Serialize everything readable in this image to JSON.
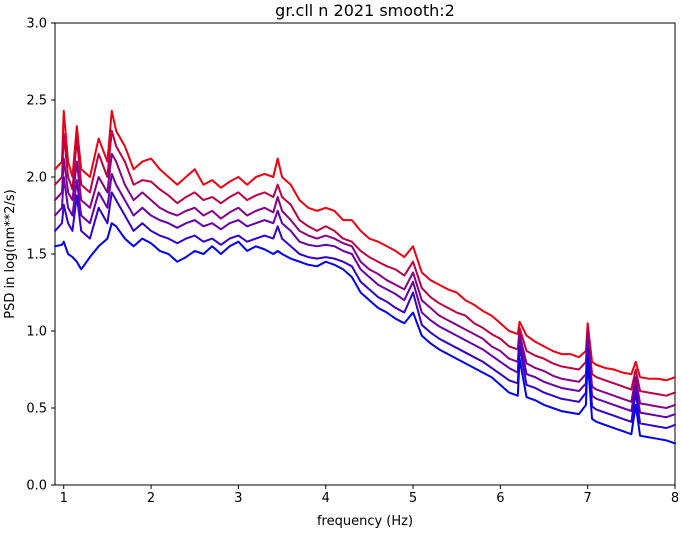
{
  "chart_data": {
    "type": "line",
    "title": "gr.cll n 2021 smooth:2",
    "xlabel": "frequency (Hz)",
    "ylabel": "PSD in log(nm**2/s)",
    "xlim": [
      0.9,
      8.0
    ],
    "ylim": [
      0.0,
      3.0
    ],
    "xticks": [
      1,
      2,
      3,
      4,
      5,
      6,
      7,
      8
    ],
    "yticks": [
      0.0,
      0.5,
      1.0,
      1.5,
      2.0,
      2.5,
      3.0
    ],
    "xtick_labels": [
      "1",
      "2",
      "3",
      "4",
      "5",
      "6",
      "7",
      "8"
    ],
    "ytick_labels": [
      "0.0",
      "0.5",
      "1.0",
      "1.5",
      "2.0",
      "2.5",
      "3.0"
    ],
    "grid": false,
    "legend": "none",
    "series": [
      {
        "color": "#ee0011",
        "x": [
          0.9,
          0.98,
          1.0,
          1.05,
          1.1,
          1.15,
          1.2,
          1.3,
          1.4,
          1.5,
          1.55,
          1.6,
          1.7,
          1.8,
          1.9,
          2.0,
          2.1,
          2.2,
          2.3,
          2.4,
          2.5,
          2.6,
          2.7,
          2.8,
          2.9,
          3.0,
          3.1,
          3.2,
          3.3,
          3.4,
          3.45,
          3.5,
          3.6,
          3.7,
          3.8,
          3.9,
          4.0,
          4.1,
          4.2,
          4.3,
          4.4,
          4.5,
          4.6,
          4.7,
          4.8,
          4.9,
          5.0,
          5.1,
          5.2,
          5.3,
          5.4,
          5.5,
          5.6,
          5.7,
          5.8,
          5.9,
          6.0,
          6.1,
          6.2,
          6.22,
          6.3,
          6.4,
          6.5,
          6.6,
          6.7,
          6.8,
          6.9,
          6.98,
          7.0,
          7.05,
          7.1,
          7.2,
          7.3,
          7.4,
          7.5,
          7.55,
          7.6,
          7.7,
          7.8,
          7.9,
          8.0
        ],
        "y": [
          2.05,
          2.1,
          2.43,
          2.1,
          2.0,
          2.33,
          2.05,
          2.0,
          2.25,
          2.1,
          2.43,
          2.3,
          2.2,
          2.05,
          2.1,
          2.12,
          2.05,
          2.0,
          1.95,
          2.0,
          2.05,
          1.95,
          1.98,
          1.93,
          1.97,
          2.0,
          1.95,
          2.0,
          2.02,
          2.0,
          2.12,
          2.0,
          1.95,
          1.85,
          1.8,
          1.78,
          1.8,
          1.78,
          1.72,
          1.72,
          1.65,
          1.6,
          1.58,
          1.55,
          1.52,
          1.48,
          1.55,
          1.38,
          1.33,
          1.3,
          1.27,
          1.25,
          1.2,
          1.17,
          1.13,
          1.1,
          1.05,
          1.0,
          0.98,
          1.06,
          0.97,
          0.93,
          0.9,
          0.87,
          0.85,
          0.85,
          0.83,
          0.87,
          1.05,
          0.8,
          0.78,
          0.76,
          0.75,
          0.73,
          0.72,
          0.8,
          0.7,
          0.69,
          0.69,
          0.68,
          0.7
        ]
      },
      {
        "color": "#bb0044",
        "x": [
          0.9,
          0.98,
          1.0,
          1.05,
          1.1,
          1.15,
          1.2,
          1.3,
          1.4,
          1.5,
          1.55,
          1.6,
          1.7,
          1.8,
          1.9,
          2.0,
          2.1,
          2.2,
          2.3,
          2.4,
          2.5,
          2.6,
          2.7,
          2.8,
          2.9,
          3.0,
          3.1,
          3.2,
          3.3,
          3.4,
          3.45,
          3.5,
          3.6,
          3.7,
          3.8,
          3.9,
          4.0,
          4.1,
          4.2,
          4.3,
          4.4,
          4.5,
          4.6,
          4.7,
          4.8,
          4.9,
          5.0,
          5.1,
          5.2,
          5.3,
          5.4,
          5.5,
          5.6,
          5.7,
          5.8,
          5.9,
          6.0,
          6.1,
          6.2,
          6.22,
          6.3,
          6.4,
          6.5,
          6.6,
          6.7,
          6.8,
          6.9,
          6.98,
          7.0,
          7.05,
          7.1,
          7.2,
          7.3,
          7.4,
          7.5,
          7.55,
          7.6,
          7.7,
          7.8,
          7.9,
          8.0
        ],
        "y": [
          1.95,
          2.0,
          2.28,
          2.0,
          1.92,
          2.25,
          1.95,
          1.9,
          2.15,
          2.0,
          2.3,
          2.2,
          2.1,
          1.95,
          1.98,
          1.97,
          1.92,
          1.88,
          1.83,
          1.87,
          1.9,
          1.85,
          1.87,
          1.83,
          1.87,
          1.9,
          1.85,
          1.88,
          1.9,
          1.87,
          1.95,
          1.87,
          1.82,
          1.72,
          1.68,
          1.65,
          1.68,
          1.65,
          1.6,
          1.58,
          1.52,
          1.48,
          1.45,
          1.42,
          1.4,
          1.36,
          1.45,
          1.28,
          1.22,
          1.18,
          1.15,
          1.12,
          1.1,
          1.05,
          1.02,
          0.98,
          0.95,
          0.9,
          0.88,
          1.02,
          0.87,
          0.84,
          0.82,
          0.79,
          0.77,
          0.76,
          0.75,
          0.8,
          1.02,
          0.72,
          0.7,
          0.68,
          0.66,
          0.64,
          0.62,
          0.75,
          0.61,
          0.6,
          0.59,
          0.58,
          0.6
        ]
      },
      {
        "color": "#880088",
        "x": [
          0.9,
          0.98,
          1.0,
          1.05,
          1.1,
          1.15,
          1.2,
          1.3,
          1.4,
          1.5,
          1.55,
          1.6,
          1.7,
          1.8,
          1.9,
          2.0,
          2.1,
          2.2,
          2.3,
          2.4,
          2.5,
          2.6,
          2.7,
          2.8,
          2.9,
          3.0,
          3.1,
          3.2,
          3.3,
          3.4,
          3.45,
          3.5,
          3.6,
          3.7,
          3.8,
          3.9,
          4.0,
          4.1,
          4.2,
          4.3,
          4.4,
          4.5,
          4.6,
          4.7,
          4.8,
          4.9,
          5.0,
          5.1,
          5.2,
          5.3,
          5.4,
          5.5,
          5.6,
          5.7,
          5.8,
          5.9,
          6.0,
          6.1,
          6.2,
          6.22,
          6.3,
          6.4,
          6.5,
          6.6,
          6.7,
          6.8,
          6.9,
          6.98,
          7.0,
          7.05,
          7.1,
          7.2,
          7.3,
          7.4,
          7.5,
          7.55,
          7.6,
          7.7,
          7.8,
          7.9,
          8.0
        ],
        "y": [
          1.85,
          1.9,
          2.12,
          1.9,
          1.85,
          2.1,
          1.85,
          1.8,
          2.0,
          1.9,
          2.15,
          2.1,
          1.95,
          1.85,
          1.9,
          1.85,
          1.8,
          1.77,
          1.75,
          1.78,
          1.8,
          1.75,
          1.78,
          1.73,
          1.77,
          1.8,
          1.75,
          1.78,
          1.8,
          1.77,
          1.87,
          1.78,
          1.72,
          1.65,
          1.62,
          1.6,
          1.62,
          1.6,
          1.57,
          1.55,
          1.45,
          1.4,
          1.37,
          1.33,
          1.3,
          1.27,
          1.38,
          1.2,
          1.15,
          1.1,
          1.07,
          1.04,
          1.01,
          0.98,
          0.95,
          0.9,
          0.87,
          0.82,
          0.8,
          0.98,
          0.79,
          0.76,
          0.74,
          0.71,
          0.69,
          0.68,
          0.67,
          0.72,
          0.98,
          0.64,
          0.62,
          0.6,
          0.58,
          0.56,
          0.54,
          0.7,
          0.53,
          0.52,
          0.51,
          0.5,
          0.52
        ]
      },
      {
        "color": "#6600aa",
        "x": [
          0.9,
          0.98,
          1.0,
          1.05,
          1.1,
          1.15,
          1.2,
          1.3,
          1.4,
          1.5,
          1.55,
          1.6,
          1.7,
          1.8,
          1.9,
          2.0,
          2.1,
          2.2,
          2.3,
          2.4,
          2.5,
          2.6,
          2.7,
          2.8,
          2.9,
          3.0,
          3.1,
          3.2,
          3.3,
          3.4,
          3.45,
          3.5,
          3.6,
          3.7,
          3.8,
          3.9,
          4.0,
          4.1,
          4.2,
          4.3,
          4.4,
          4.5,
          4.6,
          4.7,
          4.8,
          4.9,
          5.0,
          5.1,
          5.2,
          5.3,
          5.4,
          5.5,
          5.6,
          5.7,
          5.8,
          5.9,
          6.0,
          6.1,
          6.2,
          6.22,
          6.3,
          6.4,
          6.5,
          6.6,
          6.7,
          6.8,
          6.9,
          6.98,
          7.0,
          7.05,
          7.1,
          7.2,
          7.3,
          7.4,
          7.5,
          7.55,
          7.6,
          7.7,
          7.8,
          7.9,
          8.0
        ],
        "y": [
          1.75,
          1.8,
          2.0,
          1.8,
          1.75,
          1.98,
          1.75,
          1.7,
          1.9,
          1.8,
          2.02,
          1.95,
          1.85,
          1.75,
          1.8,
          1.75,
          1.72,
          1.7,
          1.67,
          1.7,
          1.72,
          1.68,
          1.7,
          1.66,
          1.7,
          1.72,
          1.68,
          1.7,
          1.72,
          1.7,
          1.78,
          1.7,
          1.65,
          1.58,
          1.56,
          1.55,
          1.56,
          1.55,
          1.52,
          1.5,
          1.4,
          1.35,
          1.3,
          1.27,
          1.24,
          1.2,
          1.32,
          1.12,
          1.07,
          1.03,
          1.0,
          0.97,
          0.94,
          0.91,
          0.88,
          0.84,
          0.8,
          0.76,
          0.73,
          0.95,
          0.72,
          0.7,
          0.67,
          0.65,
          0.63,
          0.62,
          0.61,
          0.66,
          0.95,
          0.58,
          0.56,
          0.54,
          0.52,
          0.5,
          0.48,
          0.65,
          0.47,
          0.46,
          0.45,
          0.44,
          0.46
        ]
      },
      {
        "color": "#3300cc",
        "x": [
          0.9,
          0.98,
          1.0,
          1.05,
          1.1,
          1.15,
          1.2,
          1.3,
          1.4,
          1.5,
          1.55,
          1.6,
          1.7,
          1.8,
          1.9,
          2.0,
          2.1,
          2.2,
          2.3,
          2.4,
          2.5,
          2.6,
          2.7,
          2.8,
          2.9,
          3.0,
          3.1,
          3.2,
          3.3,
          3.4,
          3.45,
          3.5,
          3.6,
          3.7,
          3.8,
          3.9,
          4.0,
          4.1,
          4.2,
          4.3,
          4.4,
          4.5,
          4.6,
          4.7,
          4.8,
          4.9,
          5.0,
          5.1,
          5.2,
          5.3,
          5.4,
          5.5,
          5.6,
          5.7,
          5.8,
          5.9,
          6.0,
          6.1,
          6.2,
          6.22,
          6.3,
          6.4,
          6.5,
          6.6,
          6.7,
          6.8,
          6.9,
          6.98,
          7.0,
          7.05,
          7.1,
          7.2,
          7.3,
          7.4,
          7.5,
          7.55,
          7.6,
          7.7,
          7.8,
          7.9,
          8.0
        ],
        "y": [
          1.65,
          1.7,
          1.82,
          1.7,
          1.65,
          1.88,
          1.65,
          1.6,
          1.8,
          1.7,
          1.9,
          1.85,
          1.75,
          1.65,
          1.7,
          1.65,
          1.62,
          1.6,
          1.57,
          1.6,
          1.62,
          1.58,
          1.6,
          1.56,
          1.6,
          1.62,
          1.58,
          1.6,
          1.62,
          1.6,
          1.68,
          1.6,
          1.55,
          1.5,
          1.48,
          1.47,
          1.48,
          1.47,
          1.45,
          1.42,
          1.32,
          1.27,
          1.22,
          1.19,
          1.15,
          1.12,
          1.25,
          1.04,
          0.99,
          0.95,
          0.92,
          0.89,
          0.86,
          0.83,
          0.8,
          0.76,
          0.72,
          0.68,
          0.66,
          0.9,
          0.65,
          0.63,
          0.6,
          0.58,
          0.56,
          0.55,
          0.54,
          0.6,
          0.9,
          0.51,
          0.49,
          0.47,
          0.45,
          0.43,
          0.41,
          0.6,
          0.4,
          0.39,
          0.38,
          0.37,
          0.39
        ]
      },
      {
        "color": "#0000ee",
        "x": [
          0.9,
          0.98,
          1.0,
          1.05,
          1.1,
          1.15,
          1.2,
          1.3,
          1.4,
          1.5,
          1.55,
          1.6,
          1.7,
          1.8,
          1.9,
          2.0,
          2.1,
          2.2,
          2.3,
          2.4,
          2.5,
          2.6,
          2.7,
          2.8,
          2.9,
          3.0,
          3.1,
          3.2,
          3.3,
          3.4,
          3.45,
          3.5,
          3.6,
          3.7,
          3.8,
          3.9,
          4.0,
          4.1,
          4.2,
          4.3,
          4.4,
          4.5,
          4.6,
          4.7,
          4.8,
          4.9,
          5.0,
          5.1,
          5.2,
          5.3,
          5.4,
          5.5,
          5.6,
          5.7,
          5.8,
          5.9,
          6.0,
          6.1,
          6.2,
          6.22,
          6.3,
          6.4,
          6.5,
          6.6,
          6.7,
          6.8,
          6.9,
          6.98,
          7.0,
          7.05,
          7.1,
          7.2,
          7.3,
          7.4,
          7.5,
          7.55,
          7.6,
          7.7,
          7.8,
          7.9,
          8.0
        ],
        "y": [
          1.55,
          1.56,
          1.58,
          1.5,
          1.48,
          1.45,
          1.4,
          1.48,
          1.55,
          1.6,
          1.7,
          1.68,
          1.6,
          1.55,
          1.6,
          1.57,
          1.52,
          1.5,
          1.45,
          1.48,
          1.52,
          1.5,
          1.55,
          1.5,
          1.55,
          1.58,
          1.52,
          1.55,
          1.53,
          1.5,
          1.52,
          1.5,
          1.47,
          1.45,
          1.43,
          1.42,
          1.45,
          1.43,
          1.4,
          1.35,
          1.25,
          1.2,
          1.15,
          1.12,
          1.08,
          1.05,
          1.12,
          0.97,
          0.92,
          0.88,
          0.85,
          0.82,
          0.79,
          0.76,
          0.73,
          0.7,
          0.65,
          0.6,
          0.58,
          0.82,
          0.57,
          0.55,
          0.52,
          0.5,
          0.48,
          0.47,
          0.46,
          0.52,
          0.82,
          0.43,
          0.41,
          0.39,
          0.37,
          0.35,
          0.33,
          0.52,
          0.32,
          0.31,
          0.3,
          0.29,
          0.27
        ]
      }
    ]
  }
}
